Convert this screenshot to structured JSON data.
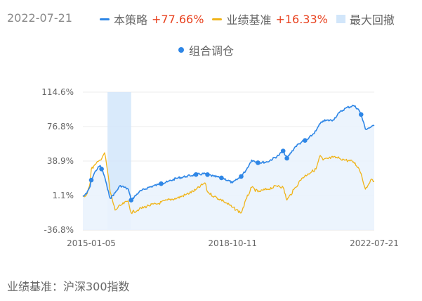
{
  "header": {
    "date": "2022-07-21"
  },
  "legend": {
    "strategy": {
      "name": "本策略",
      "value": "+77.66%",
      "color": "#2e86e6"
    },
    "benchmark": {
      "name": "业绩基准",
      "value": "+16.33%",
      "color": "#f0b419"
    },
    "drawdown": {
      "name": "最大回撤",
      "color": "#d2e6fa"
    },
    "rebalance": {
      "name": "组合调仓",
      "color": "#2e86e6"
    }
  },
  "footer": {
    "label": "业绩基准：沪深300指数"
  },
  "chart_data": {
    "type": "line",
    "x": [
      "2014-10-15",
      "2014-11-20",
      "2014-12-25",
      "2015-01-05",
      "2015-02-15",
      "2015-04-01",
      "2015-05-15",
      "2015-06-12",
      "2015-07-08",
      "2015-08-25",
      "2015-10-15",
      "2015-12-31",
      "2016-01-28",
      "2016-04-15",
      "2016-07-15",
      "2016-10-15",
      "2017-01-15",
      "2017-04-15",
      "2017-07-15",
      "2017-10-15",
      "2018-01-15",
      "2018-02-09",
      "2018-04-15",
      "2018-07-15",
      "2018-10-11",
      "2019-01-03",
      "2019-02-25",
      "2019-04-15",
      "2019-06-15",
      "2019-09-15",
      "2019-12-31",
      "2020-02-15",
      "2020-03-23",
      "2020-06-15",
      "2020-08-15",
      "2020-10-15",
      "2020-12-31",
      "2021-02-10",
      "2021-03-10",
      "2021-06-15",
      "2021-08-15",
      "2021-10-15",
      "2021-12-31",
      "2022-02-15",
      "2022-03-15",
      "2022-04-26",
      "2022-06-15",
      "2022-07-21"
    ],
    "series": [
      {
        "name": "本策略",
        "color": "#2e86e6",
        "values": [
          0.0,
          3.0,
          11.0,
          18.0,
          28.0,
          34.0,
          22.0,
          8.0,
          -2.0,
          4.0,
          12.0,
          8.0,
          -4.0,
          5.0,
          10.0,
          13.0,
          16.0,
          20.0,
          22.0,
          24.0,
          25.0,
          24.0,
          22.0,
          20.0,
          15.0,
          22.0,
          30.0,
          40.0,
          37.0,
          38.0,
          45.0,
          50.0,
          42.0,
          55.0,
          60.0,
          63.0,
          72.0,
          80.0,
          83.0,
          84.0,
          92.0,
          97.0,
          100.0,
          96.0,
          90.0,
          74.0,
          76.0,
          77.66
        ]
      },
      {
        "name": "业绩基准",
        "color": "#f0b419",
        "values": [
          0.0,
          2.0,
          15.0,
          30.0,
          35.0,
          40.0,
          48.0,
          28.0,
          5.0,
          -15.0,
          -10.0,
          -5.0,
          -18.0,
          -14.0,
          -10.0,
          -8.0,
          -4.0,
          -2.0,
          2.0,
          7.0,
          15.0,
          5.0,
          0.0,
          -5.0,
          -12.0,
          -18.0,
          -2.0,
          10.0,
          5.0,
          8.0,
          12.0,
          10.0,
          -4.0,
          10.0,
          20.0,
          25.0,
          30.0,
          45.0,
          40.0,
          43.0,
          42.0,
          40.0,
          38.0,
          32.0,
          25.0,
          8.0,
          18.0,
          16.33
        ]
      }
    ],
    "rebalance_dates": [
      "2015-01-05",
      "2015-04-15",
      "2016-01-28",
      "2016-11-15",
      "2017-10-20",
      "2018-02-09",
      "2018-06-25",
      "2019-01-03",
      "2019-06-15",
      "2020-02-15",
      "2020-03-23",
      "2020-09-15",
      "2022-03-15"
    ],
    "max_drawdown": {
      "start": "2015-06-12",
      "end": "2016-01-28"
    },
    "y_ticks": [
      "114.6%",
      "76.8%",
      "38.9%",
      "1.1%",
      "-36.8%"
    ],
    "ylim": [
      -36.8,
      114.6
    ],
    "x_ticks": [
      "2015-01-05",
      "2018-10-11",
      "2022-07-21"
    ],
    "grid": true
  }
}
